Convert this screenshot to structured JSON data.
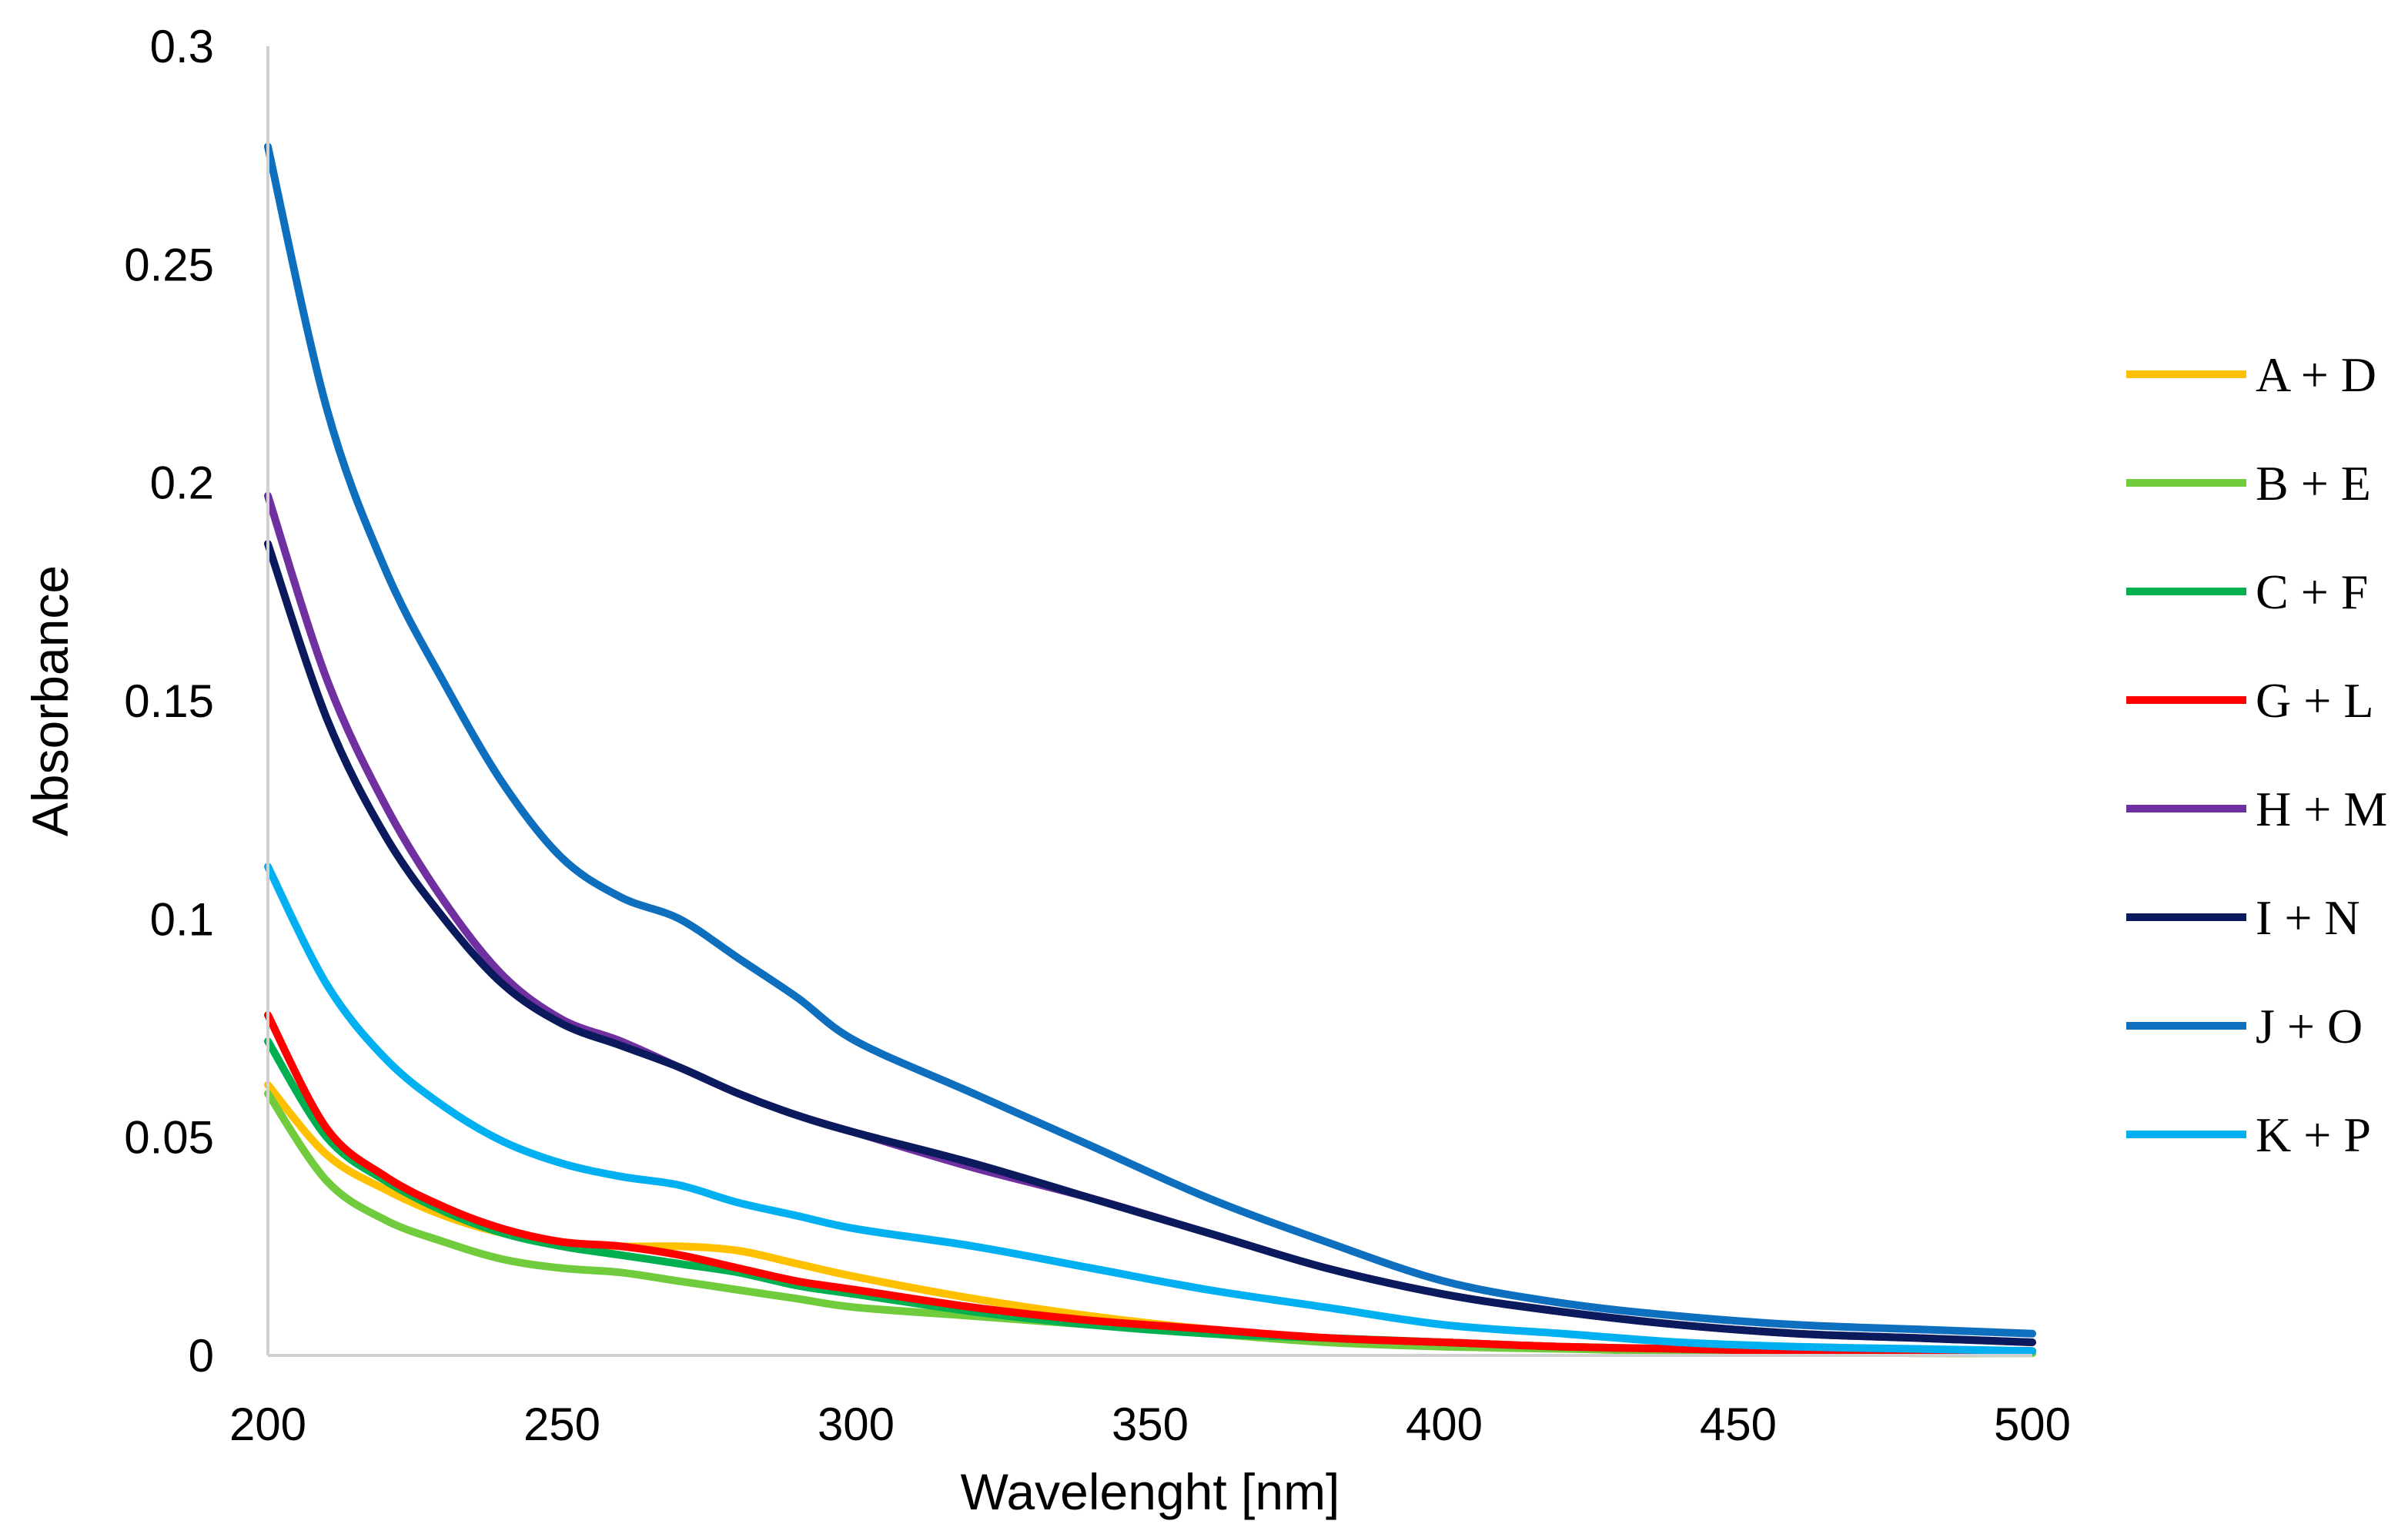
{
  "chart_data": {
    "type": "line",
    "title": "",
    "xlabel": "Wavelenght [nm]",
    "ylabel": "Absorbance",
    "xlim": [
      200,
      500
    ],
    "ylim": [
      0,
      0.3
    ],
    "xticks": [
      200,
      250,
      300,
      350,
      400,
      450,
      500
    ],
    "yticks": [
      0,
      0.05,
      0.1,
      0.15,
      0.2,
      0.25,
      0.3
    ],
    "xtick_labels": [
      "200",
      "250",
      "300",
      "350",
      "400",
      "450",
      "500"
    ],
    "ytick_labels": [
      "0",
      "0.05",
      "0.1",
      "0.15",
      "0.2",
      "0.25",
      "0.3"
    ],
    "grid": false,
    "legend_position": "right",
    "x": [
      200,
      210,
      220,
      230,
      240,
      250,
      260,
      270,
      280,
      290,
      300,
      320,
      340,
      360,
      380,
      400,
      420,
      440,
      460,
      480,
      500
    ],
    "series": [
      {
        "name": "A + D",
        "color": "#FFC000",
        "values": [
          0.062,
          0.046,
          0.038,
          0.032,
          0.028,
          0.026,
          0.025,
          0.025,
          0.024,
          0.021,
          0.018,
          0.013,
          0.009,
          0.006,
          0.004,
          0.003,
          0.002,
          0.0015,
          0.001,
          0.001,
          0.001
        ]
      },
      {
        "name": "B + E",
        "color": "#70CC3C",
        "values": [
          0.06,
          0.04,
          0.031,
          0.026,
          0.022,
          0.02,
          0.019,
          0.017,
          0.015,
          0.013,
          0.011,
          0.009,
          0.007,
          0.005,
          0.003,
          0.002,
          0.0015,
          0.001,
          0.001,
          0.0005,
          0.0005
        ]
      },
      {
        "name": "C + F",
        "color": "#00B050",
        "values": [
          0.072,
          0.05,
          0.04,
          0.033,
          0.028,
          0.025,
          0.023,
          0.021,
          0.019,
          0.016,
          0.014,
          0.01,
          0.007,
          0.005,
          0.004,
          0.003,
          0.002,
          0.0015,
          0.001,
          0.001,
          0.001
        ]
      },
      {
        "name": "G + L",
        "color": "#FF0000",
        "values": [
          0.078,
          0.052,
          0.041,
          0.034,
          0.029,
          0.026,
          0.025,
          0.023,
          0.02,
          0.017,
          0.015,
          0.011,
          0.008,
          0.006,
          0.004,
          0.003,
          0.002,
          0.0015,
          0.001,
          0.001,
          0.001
        ]
      },
      {
        "name": "H + M",
        "color": "#7030A0",
        "values": [
          0.197,
          0.155,
          0.126,
          0.104,
          0.087,
          0.077,
          0.072,
          0.066,
          0.06,
          0.055,
          0.051,
          0.043,
          0.036,
          0.028,
          0.02,
          0.014,
          0.01,
          0.007,
          0.005,
          0.004,
          0.003
        ]
      },
      {
        "name": "I + N",
        "color": "#0A1A5C",
        "values": [
          0.186,
          0.146,
          0.119,
          0.1,
          0.085,
          0.076,
          0.071,
          0.066,
          0.06,
          0.055,
          0.051,
          0.044,
          0.036,
          0.028,
          0.02,
          0.014,
          0.01,
          0.007,
          0.005,
          0.004,
          0.003
        ]
      },
      {
        "name": "J + O",
        "color": "#0F6FBF",
        "values": [
          0.277,
          0.217,
          0.18,
          0.154,
          0.131,
          0.114,
          0.105,
          0.1,
          0.091,
          0.082,
          0.072,
          0.06,
          0.048,
          0.036,
          0.026,
          0.017,
          0.012,
          0.009,
          0.007,
          0.006,
          0.005
        ]
      },
      {
        "name": "K + P",
        "color": "#00B0F0",
        "values": [
          0.112,
          0.085,
          0.068,
          0.057,
          0.049,
          0.044,
          0.041,
          0.039,
          0.035,
          0.032,
          0.029,
          0.025,
          0.02,
          0.015,
          0.011,
          0.007,
          0.005,
          0.003,
          0.002,
          0.0015,
          0.001
        ]
      }
    ]
  }
}
